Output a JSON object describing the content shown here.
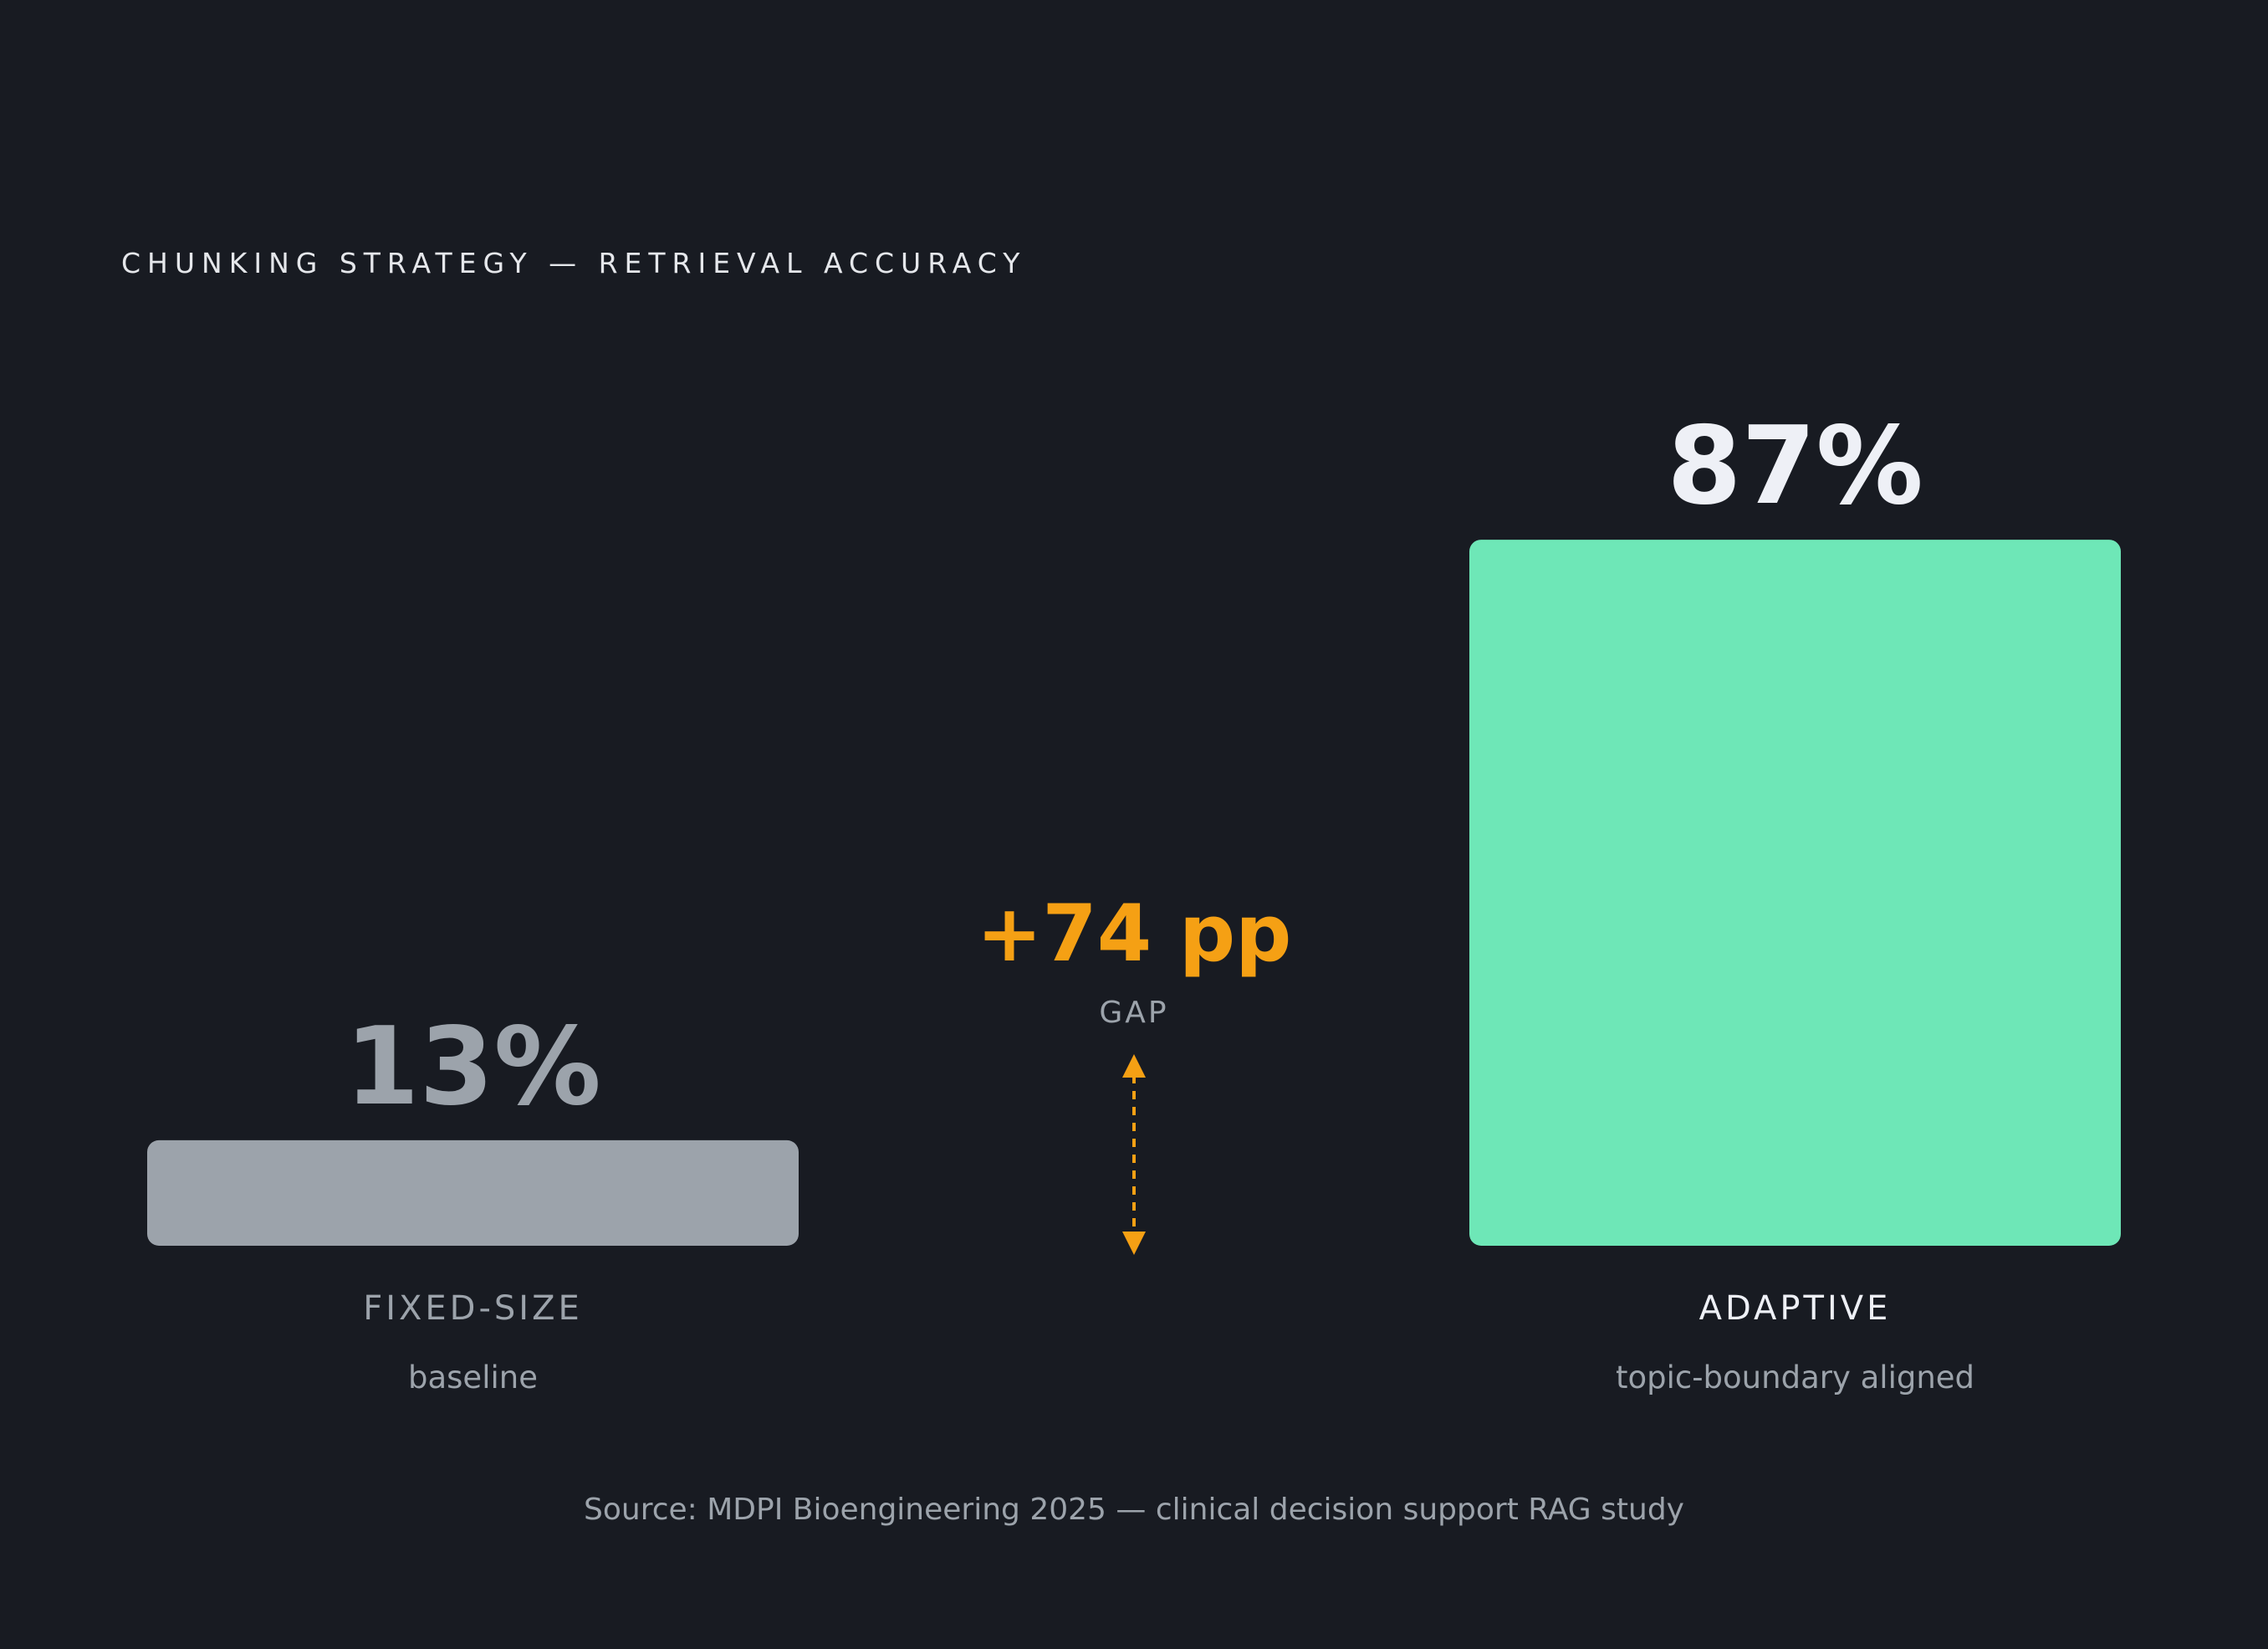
{
  "chart_data": {
    "type": "bar",
    "title": "CHUNKING STRATEGY — RETRIEVAL ACCURACY",
    "categories": [
      "FIXED-SIZE",
      "ADAPTIVE"
    ],
    "category_notes": [
      "baseline",
      "topic-boundary aligned"
    ],
    "values": [
      13,
      87
    ],
    "value_labels": [
      "13%",
      "87%"
    ],
    "colors": [
      "#9ca3ab",
      "#6ee7b7"
    ],
    "annotation": {
      "text": "+74 pp",
      "label": "GAP"
    },
    "source": "Source: MDPI Bioengineering 2025 — clinical decision support RAG study"
  }
}
